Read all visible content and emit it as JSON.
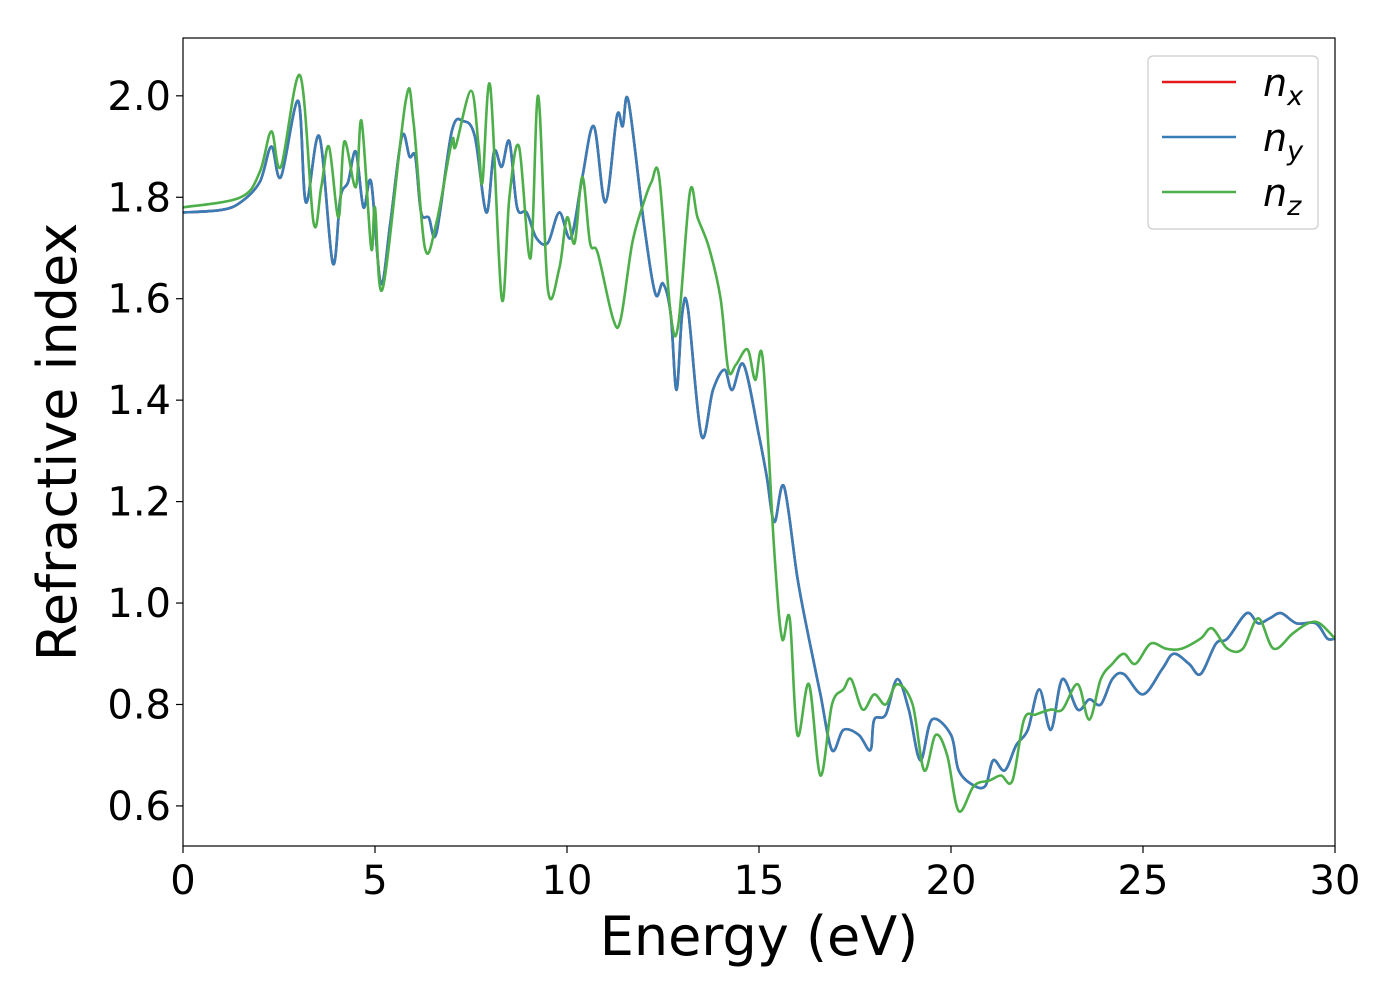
{
  "chart_data": {
    "type": "line",
    "title": "",
    "xlabel": "Energy (eV)",
    "ylabel": "Refractive index",
    "xlim": [
      0,
      30
    ],
    "ylim": [
      0.521,
      2.114
    ],
    "grid": false,
    "legend_position": "top-right",
    "xticks": [
      "0",
      "5",
      "10",
      "15",
      "20",
      "25",
      "30"
    ],
    "xtick_values": [
      0,
      5,
      10,
      15,
      20,
      25,
      30
    ],
    "yticks": [
      "0.6",
      "0.8",
      "1.0",
      "1.2",
      "1.4",
      "1.6",
      "1.8",
      "2.0"
    ],
    "ytick_values": [
      0.6,
      0.8,
      1.0,
      1.2,
      1.4,
      1.6,
      1.8,
      2.0
    ],
    "series": [
      {
        "name": "n_x",
        "label_base": "n",
        "label_sub": "x",
        "color": "#e41a1c",
        "ref": "n_y"
      },
      {
        "name": "n_y",
        "label_base": "n",
        "label_sub": "y",
        "color": "#377eb8",
        "x": [
          0,
          1,
          1.5,
          2.0,
          2.3,
          2.55,
          3.0,
          3.2,
          3.55,
          3.9,
          4.1,
          4.3,
          4.5,
          4.7,
          4.9,
          5.15,
          5.4,
          5.7,
          5.9,
          6.05,
          6.2,
          6.4,
          6.6,
          7.0,
          7.3,
          7.6,
          7.9,
          8.1,
          8.3,
          8.5,
          8.7,
          8.95,
          9.2,
          9.5,
          9.8,
          10.1,
          10.4,
          10.7,
          11.0,
          11.3,
          11.45,
          11.6,
          12.0,
          12.3,
          12.5,
          12.7,
          12.85,
          13.0,
          13.15,
          13.5,
          13.8,
          14.1,
          14.3,
          14.6,
          15.0,
          15.2,
          15.4,
          15.65,
          16.0,
          16.3,
          16.6,
          16.9,
          17.2,
          17.6,
          17.9,
          18.0,
          18.3,
          18.6,
          18.9,
          19.2,
          19.5,
          20.0,
          20.2,
          20.6,
          20.9,
          21.1,
          21.4,
          21.7,
          22.0,
          22.3,
          22.6,
          22.9,
          23.3,
          23.6,
          23.9,
          24.2,
          24.5,
          25.0,
          25.5,
          25.8,
          26.2,
          26.5,
          26.9,
          27.2,
          27.7,
          28.0,
          28.3,
          28.6,
          29.0,
          29.5,
          29.8,
          30
        ],
        "y": [
          1.77,
          1.775,
          1.79,
          1.83,
          1.9,
          1.84,
          1.99,
          1.79,
          1.92,
          1.67,
          1.8,
          1.83,
          1.89,
          1.78,
          1.83,
          1.63,
          1.75,
          1.92,
          1.88,
          1.88,
          1.77,
          1.76,
          1.73,
          1.93,
          1.95,
          1.92,
          1.77,
          1.89,
          1.86,
          1.91,
          1.78,
          1.77,
          1.72,
          1.71,
          1.77,
          1.72,
          1.84,
          1.94,
          1.79,
          1.96,
          1.94,
          1.99,
          1.75,
          1.61,
          1.63,
          1.57,
          1.42,
          1.57,
          1.58,
          1.33,
          1.42,
          1.46,
          1.42,
          1.47,
          1.33,
          1.25,
          1.16,
          1.23,
          1.05,
          0.93,
          0.82,
          0.71,
          0.75,
          0.74,
          0.71,
          0.77,
          0.78,
          0.85,
          0.79,
          0.69,
          0.77,
          0.74,
          0.67,
          0.64,
          0.64,
          0.69,
          0.67,
          0.72,
          0.75,
          0.83,
          0.75,
          0.85,
          0.79,
          0.81,
          0.8,
          0.85,
          0.86,
          0.82,
          0.87,
          0.9,
          0.88,
          0.86,
          0.92,
          0.93,
          0.98,
          0.96,
          0.97,
          0.98,
          0.96,
          0.96,
          0.93,
          0.93
        ]
      },
      {
        "name": "n_z",
        "label_base": "n",
        "label_sub": "z",
        "color": "#4daf4a",
        "x": [
          0,
          1.5,
          2.0,
          2.3,
          2.55,
          3.05,
          3.4,
          3.6,
          3.8,
          4.05,
          4.2,
          4.5,
          4.65,
          4.9,
          5.0,
          5.2,
          5.8,
          6.0,
          6.3,
          6.6,
          7.0,
          7.1,
          7.5,
          7.7,
          7.8,
          8.0,
          8.3,
          8.5,
          8.75,
          9.05,
          9.25,
          9.5,
          9.8,
          10.0,
          10.2,
          10.4,
          10.6,
          10.8,
          11.2,
          11.4,
          11.7,
          12.0,
          12.2,
          12.4,
          12.7,
          12.9,
          13.2,
          13.4,
          13.7,
          14.0,
          14.2,
          14.4,
          14.7,
          14.9,
          15.1,
          15.4,
          15.6,
          15.8,
          16.0,
          16.3,
          16.6,
          16.9,
          17.2,
          17.4,
          17.7,
          18.0,
          18.3,
          18.6,
          19.0,
          19.3,
          19.6,
          19.9,
          20.2,
          20.6,
          21.0,
          21.3,
          21.6,
          21.9,
          22.2,
          22.6,
          22.9,
          23.3,
          23.6,
          23.9,
          24.2,
          24.5,
          24.8,
          25.2,
          25.6,
          26.0,
          26.5,
          26.8,
          27.2,
          27.6,
          28.0,
          28.4,
          28.9,
          29.3,
          29.6,
          30
        ],
        "y": [
          1.78,
          1.8,
          1.85,
          1.93,
          1.86,
          2.04,
          1.75,
          1.82,
          1.9,
          1.76,
          1.91,
          1.82,
          1.95,
          1.7,
          1.78,
          1.62,
          1.99,
          1.95,
          1.7,
          1.75,
          1.91,
          1.9,
          2.01,
          1.9,
          1.83,
          2.02,
          1.6,
          1.8,
          1.9,
          1.68,
          2.0,
          1.62,
          1.66,
          1.76,
          1.71,
          1.84,
          1.71,
          1.69,
          1.56,
          1.56,
          1.71,
          1.79,
          1.83,
          1.84,
          1.57,
          1.55,
          1.81,
          1.76,
          1.7,
          1.6,
          1.46,
          1.47,
          1.5,
          1.44,
          1.48,
          1.1,
          0.93,
          0.97,
          0.74,
          0.84,
          0.66,
          0.8,
          0.83,
          0.85,
          0.79,
          0.82,
          0.8,
          0.84,
          0.8,
          0.67,
          0.74,
          0.7,
          0.59,
          0.64,
          0.65,
          0.66,
          0.65,
          0.77,
          0.78,
          0.79,
          0.79,
          0.84,
          0.77,
          0.85,
          0.88,
          0.9,
          0.88,
          0.92,
          0.91,
          0.91,
          0.93,
          0.95,
          0.91,
          0.91,
          0.97,
          0.91,
          0.94,
          0.96,
          0.96,
          0.93
        ]
      }
    ]
  }
}
